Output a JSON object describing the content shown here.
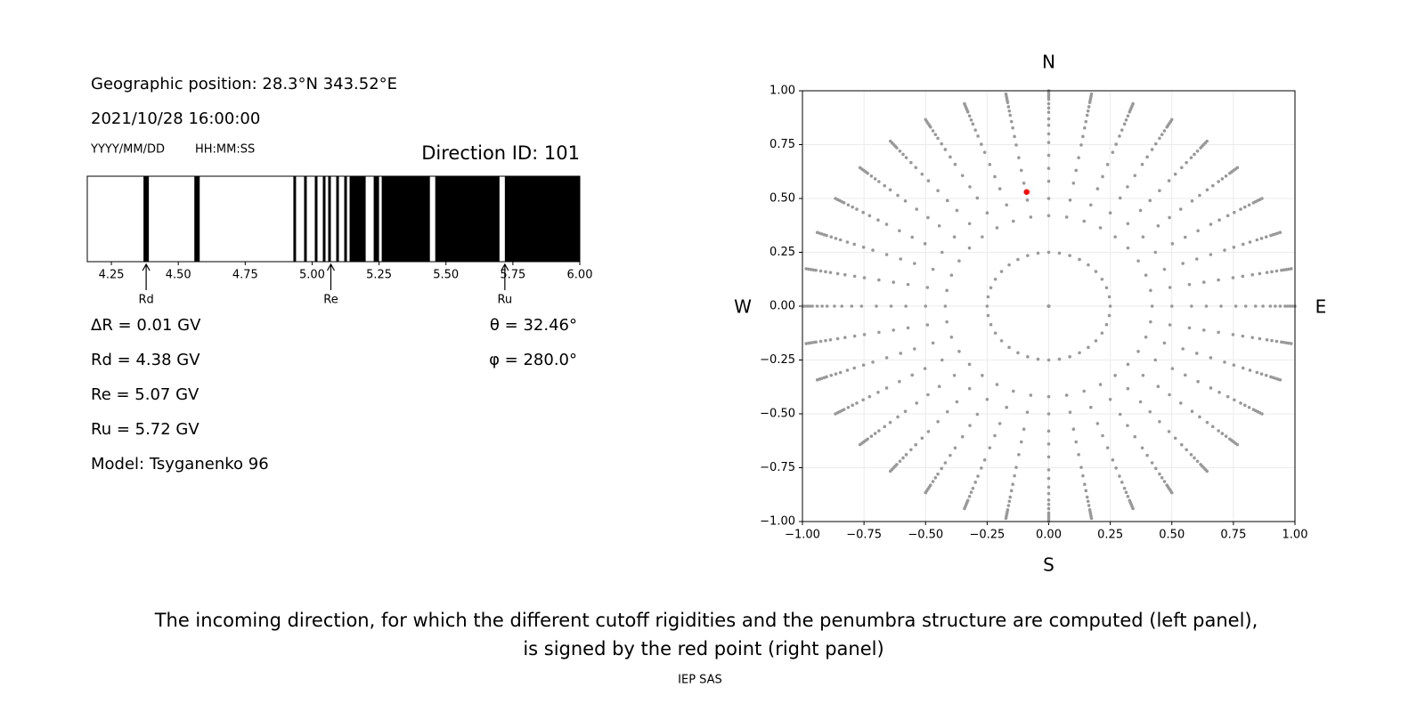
{
  "info": {
    "position": "Geographic position: 28.3°N 343.52°E",
    "datetime": "2021/10/28 16:00:00",
    "date_format": "YYYY/MM/DD",
    "time_format": "HH:MM:SS",
    "direction_id": "Direction ID: 101",
    "delta_r": "ΔR = 0.01 GV",
    "rd": "Rd = 4.38 GV",
    "re": "Re = 5.07 GV",
    "ru": "Ru = 5.72 GV",
    "model": "Model: Tsyganenko 96",
    "theta": "θ = 32.46°",
    "phi": "φ = 280.0°"
  },
  "chart_data": [
    {
      "type": "penumbra",
      "xlim": [
        4.16,
        6.0
      ],
      "xticks": [
        4.25,
        {
          "value": 4.5,
          "label": "4.50"
        },
        4.75,
        {
          "value": 5.0,
          "label": "5.00"
        },
        5.25,
        {
          "value": 5.5,
          "label": "5.50"
        },
        5.75,
        {
          "value": 6.0,
          "label": "6.00"
        }
      ],
      "color": "#000000",
      "forbidden": [
        [
          4.37,
          4.39
        ],
        [
          4.56,
          4.58
        ],
        [
          4.93,
          4.94
        ],
        [
          4.97,
          4.98
        ],
        [
          5.01,
          5.02
        ],
        [
          5.04,
          5.05
        ],
        [
          5.06,
          5.07
        ],
        [
          5.09,
          5.1
        ],
        [
          5.12,
          5.13
        ],
        [
          5.14,
          5.2
        ],
        [
          5.23,
          5.25
        ],
        [
          5.26,
          5.44
        ],
        [
          5.46,
          5.7
        ],
        [
          5.72,
          6.0
        ]
      ],
      "markers": [
        {
          "label": "Rd",
          "value": 4.38
        },
        {
          "label": "Re",
          "value": 5.07
        },
        {
          "label": "Ru",
          "value": 5.72
        }
      ]
    },
    {
      "type": "scatter",
      "xlim": [
        -1,
        1
      ],
      "ylim": [
        -1,
        1
      ],
      "xticks": [
        {
          "value": -1,
          "label": "−1.00"
        },
        {
          "value": -0.75,
          "label": "−0.75"
        },
        {
          "value": -0.5,
          "label": "−0.50"
        },
        {
          "value": -0.25,
          "label": "−0.25"
        },
        {
          "value": 0,
          "label": "0.00"
        },
        0.25,
        {
          "value": 0.5,
          "label": "0.50"
        },
        0.75,
        {
          "value": 1,
          "label": "1.00"
        }
      ],
      "yticks": [
        {
          "value": -1,
          "label": "−1.00"
        },
        {
          "value": -0.75,
          "label": "−0.75"
        },
        {
          "value": -0.5,
          "label": "−0.50"
        },
        {
          "value": -0.25,
          "label": "−0.25"
        },
        {
          "value": 0,
          "label": "0.00"
        },
        0.25,
        {
          "value": 0.5,
          "label": "0.50"
        },
        0.75,
        {
          "value": 1,
          "label": "1.00"
        }
      ],
      "grid": true,
      "directions": {
        "color": "#999999",
        "radii": [
          0,
          0.25,
          0.42,
          0.5,
          0.58,
          0.64,
          0.7,
          0.76,
          0.8,
          0.84,
          0.87,
          0.9,
          0.92,
          0.94,
          0.96,
          0.97,
          0.98,
          0.99,
          1.0
        ],
        "azimuths": [
          0,
          10,
          20,
          30,
          40,
          50,
          60,
          70,
          80,
          90,
          100,
          110,
          120,
          130,
          140,
          150,
          160,
          170,
          180,
          190,
          200,
          210,
          220,
          230,
          240,
          250,
          260,
          270,
          280,
          290,
          300,
          310,
          320,
          330,
          340,
          350
        ]
      },
      "series": [
        {
          "x": [
            -0.09
          ],
          "y": [
            0.53
          ],
          "color": "#ff0000"
        }
      ],
      "compass": {
        "top": "N",
        "bottom": "S",
        "left": "W",
        "right": "E"
      }
    }
  ],
  "caption": [
    "The incoming direction, for which the different cutoff rigidities and the penumbra structure are computed (left panel),",
    "is signed by the red point (right panel)"
  ],
  "footer": "IEP SAS"
}
